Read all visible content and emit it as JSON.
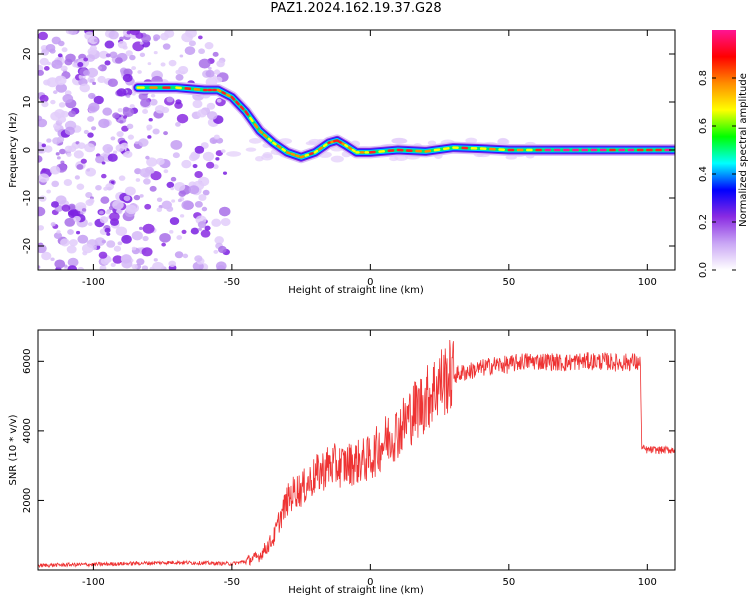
{
  "title": "PAZ1.2024.162.19.37.G28",
  "chart_data": [
    {
      "type": "heatmap",
      "xlabel": "Height of straight line (km)",
      "ylabel": "Frequency (Hz)",
      "xlim": [
        -120,
        110
      ],
      "ylim": [
        -25,
        25
      ],
      "xticks": [
        -100,
        -50,
        0,
        50,
        100
      ],
      "yticks": [
        -20,
        -10,
        0,
        10,
        20
      ],
      "colorbar": {
        "label": "Normalized spectral amplitude",
        "range": [
          0,
          1
        ],
        "ticks": [
          "0.0",
          "0.2",
          "0.4",
          "0.6",
          "0.8"
        ],
        "colors": [
          "#ffffff",
          "#c9a6f5",
          "#8a2be2",
          "#0000ff",
          "#00ffff",
          "#00ff00",
          "#ffff00",
          "#ff8c00",
          "#ff0000",
          "#ff1493"
        ]
      },
      "ridge": {
        "x": [
          -84,
          -70,
          -60,
          -55,
          -50,
          -45,
          -40,
          -35,
          -30,
          -25,
          -20,
          -15,
          -12,
          -9,
          -5,
          0,
          10,
          20,
          30,
          40,
          50,
          60,
          70,
          80,
          90,
          100,
          110
        ],
        "y": [
          13,
          13,
          12.5,
          12.5,
          11,
          8,
          4,
          1.5,
          -0.5,
          -1.5,
          -0.5,
          1.5,
          2,
          1,
          -0.5,
          -0.5,
          0,
          -0.3,
          0.5,
          0.3,
          0,
          0,
          0,
          0,
          0,
          0,
          0
        ]
      }
    },
    {
      "type": "line",
      "xlabel": "Height of straight line (km)",
      "ylabel": "SNR (10 * v/v)",
      "xlim": [
        -120,
        110
      ],
      "ylim": [
        0,
        6900
      ],
      "xticks": [
        -100,
        -50,
        0,
        50,
        100
      ],
      "yticks": [
        2000,
        4000,
        6000
      ],
      "color": "#ee3333",
      "series": [
        {
          "x": [
            -120,
            -110,
            -100,
            -90,
            -80,
            -70,
            -60,
            -50,
            -45,
            -40,
            -37,
            -35,
            -33,
            -30,
            -27,
            -25,
            -20,
            -15,
            -10,
            -5,
            0,
            5,
            10,
            15,
            20,
            25,
            30,
            35,
            40,
            45,
            50,
            55,
            60,
            65,
            70,
            75,
            80,
            85,
            90,
            95,
            97.5,
            98,
            100,
            105,
            110
          ],
          "y": [
            130,
            150,
            160,
            180,
            200,
            220,
            200,
            180,
            250,
            400,
            700,
            900,
            1400,
            2000,
            2300,
            2300,
            2700,
            3000,
            3000,
            3100,
            3200,
            3700,
            4000,
            4500,
            4900,
            5400,
            5600,
            5700,
            5800,
            5900,
            5900,
            6000,
            6000,
            6000,
            5950,
            6000,
            6000,
            6000,
            5950,
            6000,
            5900,
            3500,
            3450,
            3450,
            3450
          ]
        }
      ]
    }
  ]
}
